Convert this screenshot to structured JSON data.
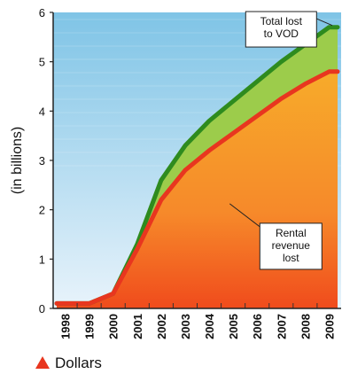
{
  "chart_data": {
    "type": "area",
    "ylabel": "(in billions)",
    "categories": [
      "1998",
      "1999",
      "2000",
      "2001",
      "2002",
      "2003",
      "2004",
      "2005",
      "2006",
      "2007",
      "2008",
      "2009"
    ],
    "ylim": [
      0,
      6
    ],
    "yticks": [
      "0",
      "1",
      "2",
      "3",
      "4",
      "5",
      "6"
    ],
    "series": [
      {
        "values": [
          0.1,
          0.1,
          0.3,
          1.2,
          2.2,
          2.8,
          3.2,
          3.55,
          3.9,
          4.25,
          4.55,
          4.8
        ],
        "color": "#e8361f"
      },
      {
        "values": [
          0.1,
          0.1,
          0.3,
          1.3,
          2.6,
          3.3,
          3.8,
          4.2,
          4.6,
          5.0,
          5.35,
          5.7
        ],
        "color": "#2e8b1e"
      }
    ],
    "annotations": [
      {
        "text_lines": [
          "Total lost",
          "to VOD"
        ],
        "x": "2007",
        "y": 5.55
      },
      {
        "text_lines": [
          "Rental",
          "revenue",
          "lost"
        ],
        "x": "2007",
        "y": 0.9
      }
    ],
    "legend": {
      "label": "Dollars",
      "marker": "triangle",
      "color": "#e8361f",
      "position": "bottom-left"
    },
    "fill_colors": {
      "revenue_top": "#f7ab2a",
      "revenue_bottom": "#f04b1c",
      "vod_gap": "#9ccc4b",
      "sky_top": "#7fc4e6",
      "sky_bottom": "#e8f3fb"
    }
  }
}
